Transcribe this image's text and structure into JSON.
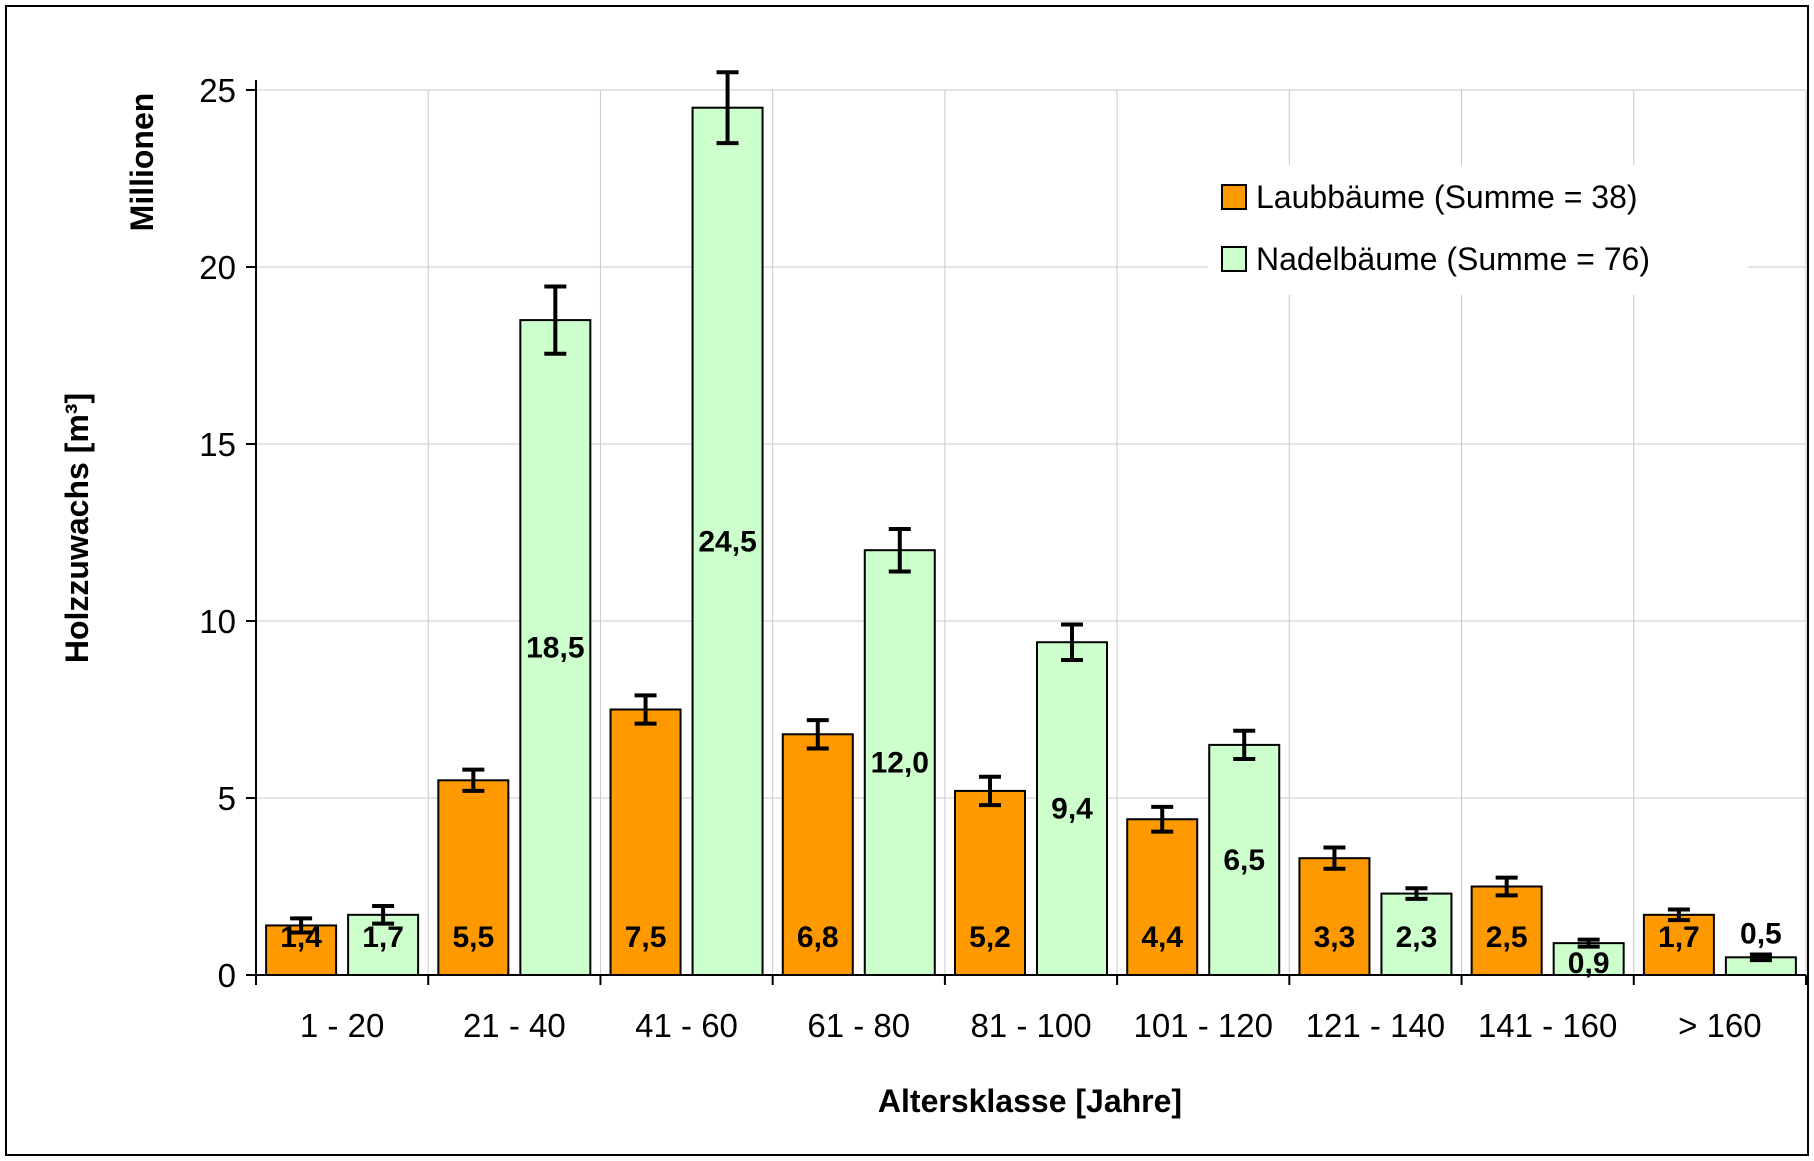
{
  "chart_data": {
    "type": "bar",
    "ylabel": "Holzzuwachs [m³]",
    "y_unit_label": "Millionen",
    "xlabel": "Altersklasse [Jahre]",
    "ylim": [
      0,
      25
    ],
    "yticks": [
      0,
      5,
      10,
      15,
      20,
      25
    ],
    "grid": true,
    "legend_position": "top-right",
    "categories": [
      "1 - 20",
      "21 - 40",
      "41 - 60",
      "61 - 80",
      "81 - 100",
      "101 - 120",
      "121 - 140",
      "141 - 160",
      "> 160"
    ],
    "series": [
      {
        "name": "Laubbäume (Summe = 38)",
        "color": "#ff9900",
        "values": [
          1.4,
          5.5,
          7.5,
          6.8,
          5.2,
          4.4,
          3.3,
          2.5,
          1.7
        ],
        "labels": [
          "1,4",
          "5,5",
          "7,5",
          "6,8",
          "5,2",
          "4,4",
          "3,3",
          "2,5",
          "1,7"
        ],
        "error": [
          0.2,
          0.3,
          0.4,
          0.4,
          0.4,
          0.35,
          0.3,
          0.25,
          0.15
        ]
      },
      {
        "name": "Nadelbäume (Summe = 76)",
        "color": "#ccffcc",
        "values": [
          1.7,
          18.5,
          24.5,
          12.0,
          9.4,
          6.5,
          2.3,
          0.9,
          0.5
        ],
        "labels": [
          "1,7",
          "18,5",
          "24,5",
          "12,0",
          "9,4",
          "6,5",
          "2,3",
          "0,9",
          "0,5"
        ],
        "error": [
          0.25,
          0.95,
          1.0,
          0.6,
          0.5,
          0.4,
          0.15,
          0.1,
          0.08
        ]
      }
    ]
  }
}
